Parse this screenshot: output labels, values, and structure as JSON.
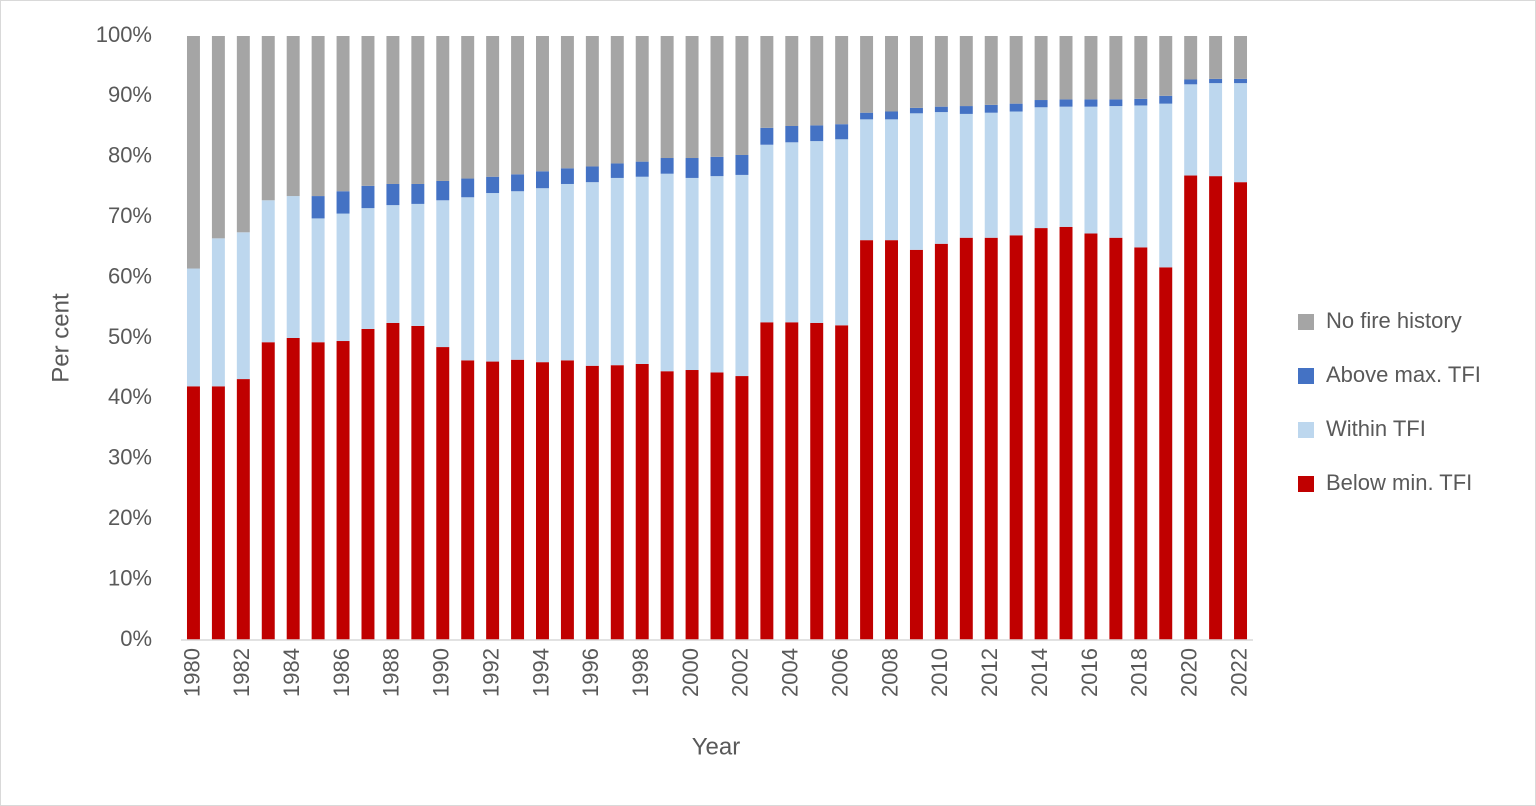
{
  "chart_data": {
    "type": "stacked-bar",
    "x_label": "Year",
    "y_label": "Per cent",
    "categories": [
      "1980",
      null,
      "1982",
      null,
      "1984",
      null,
      "1986",
      null,
      "1988",
      null,
      "1990",
      null,
      "1992",
      null,
      "1994",
      null,
      "1996",
      null,
      "1998",
      null,
      "2000",
      null,
      "2002",
      null,
      "2004",
      null,
      "2006",
      null,
      "2008",
      null,
      "2010",
      null,
      "2012",
      null,
      "2014",
      null,
      "2016",
      null,
      "2018",
      null,
      "2020",
      null,
      "2022"
    ],
    "series": [
      {
        "name": "Below min. TFI",
        "color": "#c00000",
        "values": [
          42,
          42,
          43.2,
          49.3,
          50,
          49.3,
          49.5,
          51.5,
          52.5,
          52,
          48.5,
          46.3,
          46.1,
          46.4,
          46,
          46.3,
          45.4,
          45.5,
          45.7,
          44.5,
          44.7,
          44.3,
          43.7,
          52.6,
          52.6,
          52.5,
          52.1,
          66.2,
          66.2,
          64.6,
          65.6,
          66.6,
          66.6,
          67,
          68.2,
          68.4,
          67.3,
          66.6,
          65,
          61.7,
          76.9,
          76.8,
          75.8
        ]
      },
      {
        "name": "Within TFI",
        "color": "#bdd7ee",
        "values": [
          19.5,
          24.5,
          24.3,
          23.5,
          23.5,
          20.5,
          21.1,
          20,
          19.5,
          20.2,
          24.3,
          27,
          27.9,
          27.9,
          28.8,
          29.2,
          30.4,
          31,
          31,
          32.7,
          31.8,
          32.5,
          33.3,
          29.4,
          29.8,
          30.1,
          30.8,
          20,
          20,
          22.6,
          21.8,
          20.5,
          20.7,
          20.5,
          20,
          19.9,
          21,
          21.8,
          23.5,
          27.1,
          15.1,
          15.4,
          16.4
        ]
      },
      {
        "name": "Above max. TFI",
        "color": "#4472c4",
        "values": [
          0,
          0,
          0,
          0,
          0,
          3.7,
          3.7,
          3.7,
          3.5,
          3.3,
          3.2,
          3.1,
          2.7,
          2.8,
          2.8,
          2.6,
          2.6,
          2.4,
          2.5,
          2.6,
          3.3,
          3.2,
          3.3,
          2.8,
          2.7,
          2.6,
          2.5,
          1.1,
          1.3,
          0.9,
          0.9,
          1.3,
          1.3,
          1.3,
          1.2,
          1.2,
          1.2,
          1.1,
          1.1,
          1.3,
          0.8,
          0.7,
          0.7
        ]
      },
      {
        "name": "No fire history",
        "color": "#a5a5a5",
        "values": [
          38.5,
          33.5,
          32.5,
          27.2,
          26.5,
          26.5,
          25.7,
          24.8,
          24.5,
          24.5,
          24,
          23.6,
          23.3,
          22.9,
          22.4,
          21.9,
          21.6,
          21.1,
          20.8,
          20.2,
          20.2,
          20,
          19.7,
          15.2,
          14.9,
          14.8,
          14.6,
          12.7,
          12.5,
          11.9,
          11.7,
          11.6,
          11.4,
          11.2,
          10.6,
          10.5,
          10.5,
          10.5,
          10.4,
          9.9,
          7.2,
          7.1,
          7.1
        ]
      }
    ],
    "ylim": [
      0,
      100
    ],
    "yticks": [
      {
        "value": 0,
        "label": "0%"
      },
      {
        "value": 10,
        "label": "10%"
      },
      {
        "value": 20,
        "label": "20%"
      },
      {
        "value": 30,
        "label": "30%"
      },
      {
        "value": 40,
        "label": "40%"
      },
      {
        "value": 50,
        "label": "50%"
      },
      {
        "value": 60,
        "label": "60%"
      },
      {
        "value": 70,
        "label": "70%"
      },
      {
        "value": 80,
        "label": "80%"
      },
      {
        "value": 90,
        "label": "90%"
      },
      {
        "value": 100,
        "label": "100%"
      }
    ],
    "grid": false,
    "legend": "right"
  }
}
